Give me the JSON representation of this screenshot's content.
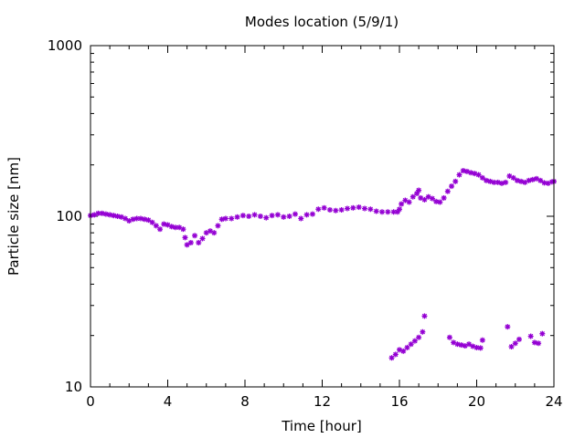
{
  "chart_data": {
    "type": "scatter",
    "title": "Modes location (5/9/1)",
    "xlabel": "Time [hour]",
    "ylabel": "Particle size [nm]",
    "xlim": [
      0,
      24
    ],
    "ylim": [
      10,
      1000
    ],
    "yscale": "log",
    "x_ticks": [
      "0",
      "4",
      "8",
      "12",
      "16",
      "20",
      "24"
    ],
    "y_ticks": [
      "10",
      "100",
      "1000"
    ],
    "grid": false,
    "legend": "none",
    "marker_color": "#9400d3",
    "series": [
      {
        "values": [
          [
            0.0,
            101
          ],
          [
            0.2,
            102
          ],
          [
            0.4,
            104
          ],
          [
            0.6,
            104
          ],
          [
            0.8,
            103
          ],
          [
            1.0,
            102
          ],
          [
            1.2,
            101
          ],
          [
            1.4,
            100
          ],
          [
            1.6,
            99
          ],
          [
            1.8,
            97
          ],
          [
            2.0,
            94
          ],
          [
            2.2,
            96
          ],
          [
            2.4,
            97
          ],
          [
            2.6,
            97
          ],
          [
            2.8,
            96
          ],
          [
            3.0,
            95
          ],
          [
            3.2,
            92
          ],
          [
            3.4,
            88
          ],
          [
            3.6,
            84
          ],
          [
            3.8,
            90
          ],
          [
            4.0,
            89
          ],
          [
            4.2,
            87
          ],
          [
            4.4,
            86
          ],
          [
            4.6,
            86
          ],
          [
            4.8,
            84
          ],
          [
            4.9,
            75
          ],
          [
            5.0,
            68
          ],
          [
            5.2,
            70
          ],
          [
            5.4,
            77
          ],
          [
            5.6,
            70
          ],
          [
            5.8,
            74
          ],
          [
            6.0,
            80
          ],
          [
            6.2,
            82
          ],
          [
            6.4,
            80
          ],
          [
            6.6,
            88
          ],
          [
            6.8,
            96
          ],
          [
            7.0,
            97
          ],
          [
            7.3,
            97
          ],
          [
            7.6,
            99
          ],
          [
            7.9,
            101
          ],
          [
            8.2,
            100
          ],
          [
            8.5,
            102
          ],
          [
            8.8,
            100
          ],
          [
            9.1,
            98
          ],
          [
            9.4,
            101
          ],
          [
            9.7,
            102
          ],
          [
            10.0,
            99
          ],
          [
            10.3,
            100
          ],
          [
            10.6,
            103
          ],
          [
            10.9,
            97
          ],
          [
            11.2,
            102
          ],
          [
            11.5,
            103
          ],
          [
            11.8,
            110
          ],
          [
            12.1,
            112
          ],
          [
            12.4,
            109
          ],
          [
            12.7,
            108
          ],
          [
            13.0,
            109
          ],
          [
            13.3,
            111
          ],
          [
            13.6,
            112
          ],
          [
            13.9,
            113
          ],
          [
            14.2,
            111
          ],
          [
            14.5,
            110
          ],
          [
            14.8,
            107
          ],
          [
            15.1,
            106
          ],
          [
            15.4,
            106
          ],
          [
            15.7,
            106
          ],
          [
            15.9,
            106
          ],
          [
            16.0,
            110
          ],
          [
            16.1,
            118
          ],
          [
            16.3,
            124
          ],
          [
            16.5,
            121
          ],
          [
            16.7,
            130
          ],
          [
            16.9,
            136
          ],
          [
            17.0,
            142
          ],
          [
            17.1,
            128
          ],
          [
            17.3,
            125
          ],
          [
            17.5,
            130
          ],
          [
            17.7,
            127
          ],
          [
            17.9,
            122
          ],
          [
            18.1,
            121
          ],
          [
            18.3,
            128
          ],
          [
            18.5,
            140
          ],
          [
            18.7,
            150
          ],
          [
            18.9,
            160
          ],
          [
            19.1,
            175
          ],
          [
            19.3,
            185
          ],
          [
            19.5,
            183
          ],
          [
            19.7,
            180
          ],
          [
            19.9,
            178
          ],
          [
            20.1,
            175
          ],
          [
            20.3,
            168
          ],
          [
            20.5,
            162
          ],
          [
            20.7,
            160
          ],
          [
            20.9,
            158
          ],
          [
            21.1,
            158
          ],
          [
            21.3,
            156
          ],
          [
            21.5,
            158
          ],
          [
            21.7,
            172
          ],
          [
            21.9,
            168
          ],
          [
            22.1,
            162
          ],
          [
            22.3,
            160
          ],
          [
            22.5,
            158
          ],
          [
            22.7,
            162
          ],
          [
            22.9,
            164
          ],
          [
            23.1,
            166
          ],
          [
            23.3,
            162
          ],
          [
            23.5,
            157
          ],
          [
            23.7,
            156
          ],
          [
            23.9,
            159
          ],
          [
            24.0,
            160
          ]
        ]
      },
      {
        "values": [
          [
            15.6,
            14.8
          ],
          [
            15.8,
            15.5
          ],
          [
            16.0,
            16.5
          ],
          [
            16.2,
            16.2
          ],
          [
            16.4,
            17.0
          ],
          [
            16.6,
            17.8
          ],
          [
            16.8,
            18.6
          ],
          [
            17.0,
            19.5
          ],
          [
            17.2,
            21.0
          ],
          [
            17.3,
            26.0
          ],
          [
            18.6,
            19.5
          ],
          [
            18.8,
            18.2
          ],
          [
            19.0,
            17.8
          ],
          [
            19.2,
            17.6
          ],
          [
            19.4,
            17.4
          ],
          [
            19.6,
            17.8
          ],
          [
            19.8,
            17.3
          ],
          [
            20.0,
            17.0
          ],
          [
            20.2,
            16.9
          ],
          [
            20.3,
            18.8
          ],
          [
            21.6,
            22.5
          ],
          [
            21.8,
            17.2
          ],
          [
            22.0,
            18.0
          ],
          [
            22.2,
            19.0
          ],
          [
            22.8,
            19.8
          ],
          [
            23.0,
            18.2
          ],
          [
            23.2,
            18.0
          ],
          [
            23.4,
            20.5
          ]
        ]
      }
    ]
  }
}
